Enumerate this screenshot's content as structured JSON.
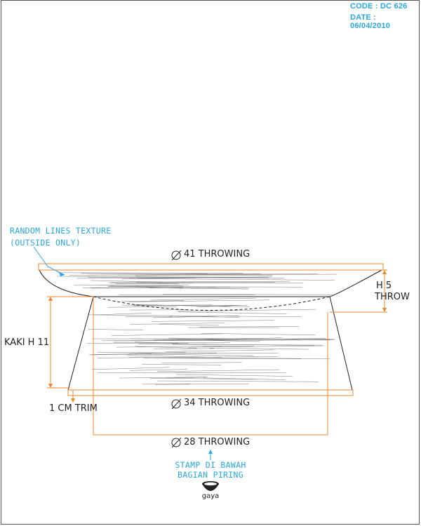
{
  "header": {
    "code": "CODE : DC 626",
    "date": "DATE : 06/04/2010"
  },
  "annotations": {
    "texture_line1": "RANDOM LINES TEXTURE",
    "texture_line2": "(OUTSIDE ONLY)",
    "top_diameter": "41 THROWING",
    "height_line1": "H 5",
    "height_line2": "THROW",
    "foot_height": "KAKI H 11",
    "trim": "1 CM TRIM",
    "base_diameter": "34 THROWING",
    "inner_diameter": "28 THROWING",
    "stamp_line1": "STAMP DI BAWAH",
    "stamp_line2": "BAGIAN PIRING",
    "stamp_logo_text": "gaya"
  },
  "colors": {
    "dimension": "#e8892b",
    "annotation": "#2aa7df",
    "outline": "#222222"
  }
}
